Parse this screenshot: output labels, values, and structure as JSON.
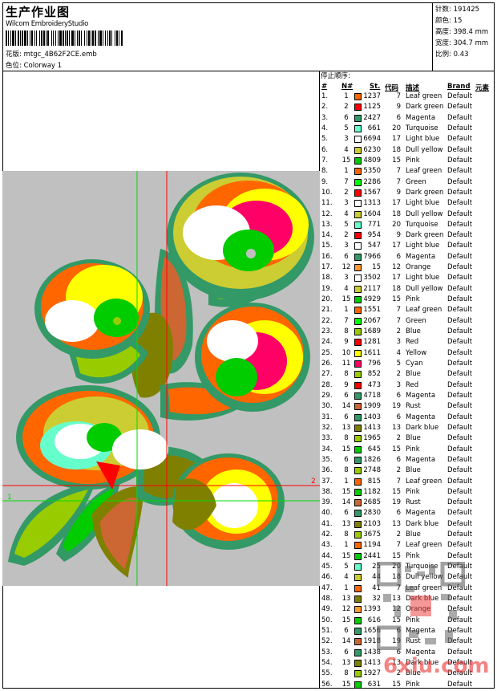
{
  "header": {
    "title": "生产作业图",
    "software": "Wilcom EmbroideryStudio",
    "design_label": "花版:",
    "design_file": "mtgc_4B62F2CE.emb",
    "colorway_label": "色位:",
    "colorway": "Colorway 1"
  },
  "stats": {
    "stitches_label": "针数:",
    "stitches": "191425",
    "colors_label": "颜色:",
    "colors": "15",
    "height_label": "高度:",
    "height": "398.4 mm",
    "width_label": "宽度:",
    "width": "304.7 mm",
    "scale_label": "比例:",
    "scale": "0.43"
  },
  "table": {
    "title": "停止顺序:",
    "columns": {
      "idx": "#",
      "needle": "N#",
      "st": "St.",
      "code": "代码",
      "desc": "描述",
      "brand": "Brand",
      "element": "元素"
    },
    "needle_colors": {
      "1": "#ff6600",
      "2": "#ff0000",
      "3": "#ffffff",
      "4": "#cccc33",
      "5": "#66ffcc",
      "6": "#339966",
      "7": "#00ff00",
      "8": "#99cc00",
      "9": "#ff0000",
      "10": "#ffff00",
      "11": "#ff0066",
      "12": "#ff9933",
      "13": "#808000",
      "14": "#cc6633",
      "15": "#00cc00"
    },
    "rows": [
      [
        "1.",
        "1",
        "1237",
        "7",
        "Leaf green",
        "Default"
      ],
      [
        "2.",
        "2",
        "1125",
        "9",
        "Dark green",
        "Default"
      ],
      [
        "3.",
        "6",
        "2427",
        "6",
        "Magenta",
        "Default"
      ],
      [
        "4.",
        "5",
        "661",
        "20",
        "Turquoise",
        "Default"
      ],
      [
        "5.",
        "3",
        "6694",
        "17",
        "Light blue",
        "Default"
      ],
      [
        "6.",
        "4",
        "6230",
        "18",
        "Dull yellow",
        "Default"
      ],
      [
        "7.",
        "15",
        "4809",
        "15",
        "Pink",
        "Default"
      ],
      [
        "8.",
        "1",
        "5350",
        "7",
        "Leaf green",
        "Default"
      ],
      [
        "9.",
        "7",
        "2286",
        "7",
        "Green",
        "Default"
      ],
      [
        "10.",
        "2",
        "1567",
        "9",
        "Dark green",
        "Default"
      ],
      [
        "11.",
        "3",
        "1313",
        "17",
        "Light blue",
        "Default"
      ],
      [
        "12.",
        "4",
        "1604",
        "18",
        "Dull yellow",
        "Default"
      ],
      [
        "13.",
        "5",
        "771",
        "20",
        "Turquoise",
        "Default"
      ],
      [
        "14.",
        "2",
        "954",
        "9",
        "Dark green",
        "Default"
      ],
      [
        "15.",
        "3",
        "547",
        "17",
        "Light blue",
        "Default"
      ],
      [
        "16.",
        "6",
        "7966",
        "6",
        "Magenta",
        "Default"
      ],
      [
        "17.",
        "12",
        "15",
        "12",
        "Orange",
        "Default"
      ],
      [
        "18.",
        "3",
        "3502",
        "17",
        "Light blue",
        "Default"
      ],
      [
        "19.",
        "4",
        "2117",
        "18",
        "Dull yellow",
        "Default"
      ],
      [
        "20.",
        "15",
        "4929",
        "15",
        "Pink",
        "Default"
      ],
      [
        "21.",
        "1",
        "1551",
        "7",
        "Leaf green",
        "Default"
      ],
      [
        "22.",
        "7",
        "2067",
        "7",
        "Green",
        "Default"
      ],
      [
        "23.",
        "8",
        "1689",
        "2",
        "Blue",
        "Default"
      ],
      [
        "24.",
        "9",
        "1281",
        "3",
        "Red",
        "Default"
      ],
      [
        "25.",
        "10",
        "1611",
        "4",
        "Yellow",
        "Default"
      ],
      [
        "26.",
        "11",
        "796",
        "5",
        "Cyan",
        "Default"
      ],
      [
        "27.",
        "8",
        "852",
        "2",
        "Blue",
        "Default"
      ],
      [
        "28.",
        "9",
        "473",
        "3",
        "Red",
        "Default"
      ],
      [
        "29.",
        "6",
        "4718",
        "6",
        "Magenta",
        "Default"
      ],
      [
        "30.",
        "14",
        "1909",
        "19",
        "Rust",
        "Default"
      ],
      [
        "31.",
        "6",
        "1403",
        "6",
        "Magenta",
        "Default"
      ],
      [
        "32.",
        "13",
        "1413",
        "13",
        "Dark blue",
        "Default"
      ],
      [
        "33.",
        "8",
        "1965",
        "2",
        "Blue",
        "Default"
      ],
      [
        "34.",
        "15",
        "645",
        "15",
        "Pink",
        "Default"
      ],
      [
        "35.",
        "6",
        "1826",
        "6",
        "Magenta",
        "Default"
      ],
      [
        "36.",
        "8",
        "2748",
        "2",
        "Blue",
        "Default"
      ],
      [
        "37.",
        "1",
        "815",
        "7",
        "Leaf green",
        "Default"
      ],
      [
        "38.",
        "15",
        "1182",
        "15",
        "Pink",
        "Default"
      ],
      [
        "39.",
        "14",
        "2685",
        "19",
        "Rust",
        "Default"
      ],
      [
        "40.",
        "6",
        "2830",
        "6",
        "Magenta",
        "Default"
      ],
      [
        "41.",
        "13",
        "2103",
        "13",
        "Dark blue",
        "Default"
      ],
      [
        "42.",
        "8",
        "3675",
        "2",
        "Blue",
        "Default"
      ],
      [
        "43.",
        "1",
        "1194",
        "7",
        "Leaf green",
        "Default"
      ],
      [
        "44.",
        "15",
        "2441",
        "15",
        "Pink",
        "Default"
      ],
      [
        "45.",
        "5",
        "25",
        "20",
        "Turquoise",
        "Default"
      ],
      [
        "46.",
        "4",
        "44",
        "18",
        "Dull yellow",
        "Default"
      ],
      [
        "47.",
        "1",
        "41",
        "7",
        "Leaf green",
        "Default"
      ],
      [
        "48.",
        "13",
        "32",
        "13",
        "Dark blue",
        "Default"
      ],
      [
        "49.",
        "12",
        "1393",
        "12",
        "Orange",
        "Default"
      ],
      [
        "50.",
        "15",
        "616",
        "15",
        "Pink",
        "Default"
      ],
      [
        "51.",
        "6",
        "1656",
        "6",
        "Magenta",
        "Default"
      ],
      [
        "52.",
        "14",
        "1918",
        "19",
        "Rust",
        "Default"
      ],
      [
        "53.",
        "6",
        "1438",
        "6",
        "Magenta",
        "Default"
      ],
      [
        "54.",
        "13",
        "1413",
        "13",
        "Dark blue",
        "Default"
      ],
      [
        "55.",
        "8",
        "1927",
        "2",
        "Blue",
        "Default"
      ],
      [
        "56.",
        "15",
        "631",
        "15",
        "Pink",
        "Default"
      ]
    ]
  },
  "canvas": {
    "guide_1": "1",
    "guide_2": "2",
    "background": "#c0c0c0"
  },
  "watermark": {
    "text": "6xiu.com",
    "stamp": "秘图"
  }
}
